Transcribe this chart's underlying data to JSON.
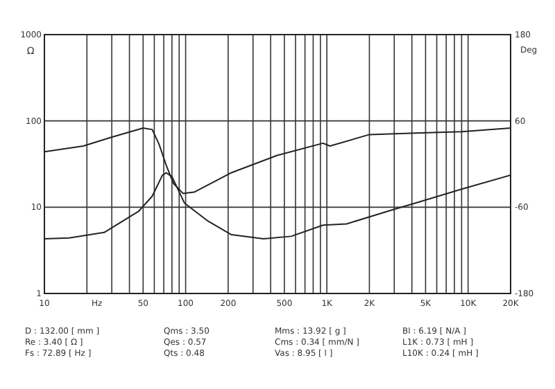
{
  "chart_data": {
    "type": "line",
    "xlabel": "Hz",
    "ylabel": "Ω",
    "y2label": "Deg",
    "log": "xy",
    "grid": true,
    "line_style": "solid",
    "marker": "none",
    "xlim": [
      10,
      20000
    ],
    "ylim": [
      1,
      1000
    ],
    "y2lim": [
      -180,
      180
    ],
    "xticks": [
      10,
      {
        "value": 20,
        "label": null
      },
      {
        "value": 30,
        "label": null
      },
      {
        "value": 40,
        "label": null
      },
      50,
      {
        "value": 60,
        "label": null
      },
      {
        "value": 70,
        "label": null
      },
      {
        "value": 80,
        "label": null
      },
      {
        "value": 90,
        "label": null
      },
      100,
      200,
      {
        "value": 300,
        "label": null
      },
      {
        "value": 400,
        "label": null
      },
      500,
      {
        "value": 600,
        "label": null
      },
      {
        "value": 700,
        "label": null
      },
      {
        "value": 800,
        "label": null
      },
      {
        "value": 900,
        "label": null
      },
      {
        "value": 1000,
        "label": "1K"
      },
      {
        "value": 2000,
        "label": "2K"
      },
      {
        "value": 3000,
        "label": null
      },
      {
        "value": 4000,
        "label": null
      },
      {
        "value": 5000,
        "label": "5K"
      },
      {
        "value": 6000,
        "label": null
      },
      {
        "value": 7000,
        "label": null
      },
      {
        "value": 8000,
        "label": null
      },
      {
        "value": 9000,
        "label": null
      },
      {
        "value": 10000,
        "label": "10K"
      },
      {
        "value": 20000,
        "label": "20K"
      }
    ],
    "yticks": [
      1,
      10,
      100,
      1000
    ],
    "y2ticks": [
      -180,
      -60,
      60,
      180
    ],
    "series": [
      {
        "color": "#222222",
        "x": [
          10,
          15,
          26.5,
          46.6,
          58,
          68.5,
          73,
          80,
          98,
          144,
          211,
          356,
          560,
          940,
          1380,
          2900,
          4260,
          9000,
          20000
        ],
        "values": [
          4.3,
          4.4,
          5.1,
          9.0,
          13.4,
          23.5,
          25,
          22.6,
          11.2,
          6.9,
          4.8,
          4.3,
          4.6,
          6.2,
          6.4,
          9.3,
          11.2,
          16.2,
          23.5
        ]
      },
      {
        "color": "#222222",
        "axis": "y2",
        "x": [
          10,
          18.8,
          29.6,
          50,
          58,
          65,
          73,
          82,
          96,
          115,
          211,
          445,
          940,
          1050,
          2000,
          4260,
          9000,
          20000
        ],
        "values": [
          17,
          25,
          37,
          50,
          48,
          27,
          -2,
          -27,
          -41,
          -39,
          -12,
          12,
          29,
          25,
          41,
          43,
          45,
          50
        ]
      }
    ],
    "annotations": [
      "D : 132.00 [ mm ]",
      "Re : 3.40 [ Ω ]",
      "Fs : 72.89 [ Hz ]",
      "Qms : 3.50",
      "Qes : 0.57",
      "Qts : 0.48",
      "Mms : 13.92 [ g ]",
      "Cms : 0.34 [ mm/N ]",
      "Vas : 8.95 [ l ]",
      "Bl : 6.19 [ N/A ]",
      "L1K : 0.73 [ mH ]",
      "L10K : 0.24 [ mH ]"
    ]
  }
}
